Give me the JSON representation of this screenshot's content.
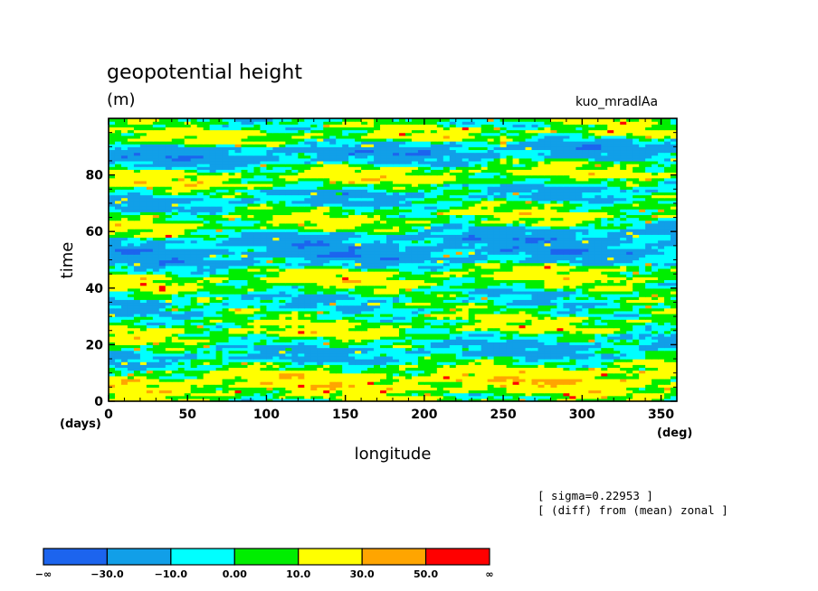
{
  "header": {
    "title": "geopotential height",
    "units": "(m)",
    "experiment": "kuo_mradlAa"
  },
  "footer": {
    "info_line_1": "[ sigma=0.22953 ]",
    "info_line_2": "[ (diff) from (mean) zonal ]"
  },
  "colorbar": {
    "bins": [
      {
        "color": "#1c64ee"
      },
      {
        "color": "#119fe8"
      },
      {
        "color": "#00ffff"
      },
      {
        "color": "#00ee00"
      },
      {
        "color": "#ffff00"
      },
      {
        "color": "#ffa500"
      },
      {
        "color": "#ff0000"
      }
    ],
    "labels": [
      "−∞",
      "−30.0",
      "−10.0",
      "0.00",
      "10.0",
      "30.0",
      "50.0",
      "∞"
    ]
  },
  "chart_data": {
    "type": "heatmap",
    "title": "geopotential height",
    "subtitle": "(m)",
    "xlabel": "longitude",
    "ylabel": "time",
    "x_unit": "(deg)",
    "y_unit": "(days)",
    "xlim": [
      0,
      360
    ],
    "ylim": [
      0,
      100
    ],
    "xticks": [
      0,
      50,
      100,
      150,
      200,
      250,
      300,
      350
    ],
    "yticks": [
      0,
      20,
      40,
      60,
      80
    ],
    "legend": "bottom colorbar",
    "levels": [
      -30,
      -10,
      0,
      10,
      30,
      50
    ],
    "colors": [
      "#1c64ee",
      "#119fe8",
      "#00ffff",
      "#00ee00",
      "#ffff00",
      "#ffa500",
      "#ff0000"
    ],
    "field": {
      "description_rows": "approximate band structure of geopotential height anomaly versus time and longitude",
      "bands": [
        {
          "t_start": 0,
          "t_end": 3,
          "value": 5,
          "slope": 0.0
        },
        {
          "t_start": 1,
          "t_end": 12,
          "value": 20,
          "slope": 0.015
        },
        {
          "t_start": 10,
          "t_end": 20,
          "value": -15,
          "slope": 0.02
        },
        {
          "t_start": 18,
          "t_end": 34,
          "value": 18,
          "slope": 0.035
        },
        {
          "t_start": 26,
          "t_end": 38,
          "value": -20,
          "slope": 0.02
        },
        {
          "t_start": 38,
          "t_end": 46,
          "value": 15,
          "slope": 0.01
        },
        {
          "t_start": 46,
          "t_end": 58,
          "value": -18,
          "slope": 0.02
        },
        {
          "t_start": 58,
          "t_end": 66,
          "value": 12,
          "slope": 0.03
        },
        {
          "t_start": 66,
          "t_end": 74,
          "value": -12,
          "slope": 0.02
        },
        {
          "t_start": 74,
          "t_end": 82,
          "value": 16,
          "slope": 0.025
        },
        {
          "t_start": 82,
          "t_end": 90,
          "value": -20,
          "slope": 0.01
        },
        {
          "t_start": 90,
          "t_end": 97,
          "value": 15,
          "slope": 0.02
        },
        {
          "t_start": 96,
          "t_end": 100,
          "value": -5,
          "slope": 0.0
        }
      ]
    }
  }
}
